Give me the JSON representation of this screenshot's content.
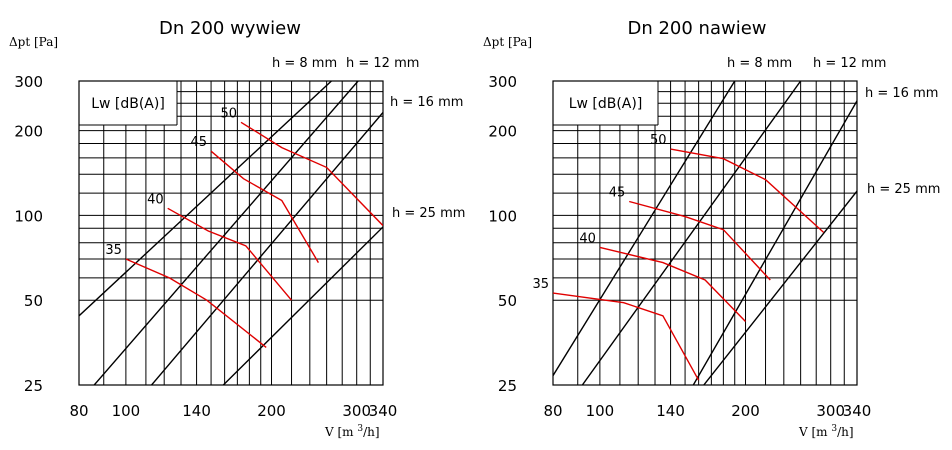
{
  "chart_data": [
    {
      "type": "line",
      "title": "Dn 200 wywiew",
      "ylabel": "Δpt [Pa]",
      "xlabel": "V [m³/h]",
      "xscale": "log",
      "yscale": "log",
      "xlim": [
        80,
        340
      ],
      "ylim": [
        25,
        300
      ],
      "x_ticks": [
        80,
        100,
        140,
        200,
        300,
        340
      ],
      "y_ticks": [
        25,
        50,
        100,
        200,
        300
      ],
      "x_gridlines": [
        90,
        100,
        110,
        120,
        130,
        140,
        150,
        160,
        170,
        180,
        190,
        200,
        220,
        240,
        260,
        280,
        300,
        320
      ],
      "y_gridlines": [
        50,
        60,
        70,
        80,
        90,
        100,
        120,
        140,
        160,
        180,
        200,
        225,
        250,
        275
      ],
      "box_label": "Lw [dB(A)]",
      "h_lines": [
        {
          "name": "h = 8 mm",
          "p0": [
            80,
            44
          ],
          "p1": [
            266,
            300
          ]
        },
        {
          "name": "h = 12 mm",
          "p0": [
            86,
            25
          ],
          "p1": [
            302,
            300
          ]
        },
        {
          "name": "h = 16 mm",
          "p0": [
            113,
            25
          ],
          "p1": [
            340,
            232
          ]
        },
        {
          "name": "h = 25 mm",
          "p0": [
            159,
            25
          ],
          "p1": [
            340,
            91
          ]
        }
      ],
      "level_lines": [
        {
          "name": "35",
          "points": [
            [
              100,
              70
            ],
            [
              123,
              60
            ],
            [
              147,
              50
            ],
            [
              195,
              34
            ]
          ]
        },
        {
          "name": "40",
          "points": [
            [
              122,
              106
            ],
            [
              148,
              88
            ],
            [
              177,
              78
            ],
            [
              220,
              50
            ]
          ]
        },
        {
          "name": "45",
          "points": [
            [
              150,
              169
            ],
            [
              175,
              135
            ],
            [
              210,
              113
            ],
            [
              250,
              68
            ]
          ]
        },
        {
          "name": "50",
          "points": [
            [
              173,
              214
            ],
            [
              210,
              174
            ],
            [
              260,
              148
            ],
            [
              340,
              92
            ]
          ]
        }
      ]
    },
    {
      "type": "line",
      "title": "Dn 200 nawiew",
      "ylabel": "Δpt [Pa]",
      "xlabel": "V [m³/h]",
      "xscale": "log",
      "yscale": "log",
      "xlim": [
        80,
        340
      ],
      "ylim": [
        25,
        300
      ],
      "x_ticks": [
        80,
        100,
        140,
        200,
        300,
        340
      ],
      "y_ticks": [
        25,
        50,
        100,
        200,
        300
      ],
      "x_gridlines": [
        90,
        100,
        110,
        120,
        130,
        140,
        150,
        160,
        170,
        180,
        190,
        200,
        220,
        240,
        260,
        280,
        300,
        320
      ],
      "y_gridlines": [
        50,
        60,
        70,
        80,
        90,
        100,
        120,
        140,
        160,
        180,
        200,
        225,
        250,
        275
      ],
      "box_label": "Lw [dB(A)]",
      "h_lines": [
        {
          "name": "h = 8 mm",
          "p0": [
            80,
            27
          ],
          "p1": [
            190,
            300
          ]
        },
        {
          "name": "h = 12 mm",
          "p0": [
            92,
            25
          ],
          "p1": [
            260,
            300
          ]
        },
        {
          "name": "h = 16 mm",
          "p0": [
            156,
            25
          ],
          "p1": [
            340,
            255
          ]
        },
        {
          "name": "h = 25 mm",
          "p0": [
            164,
            25
          ],
          "p1": [
            340,
            122
          ]
        }
      ],
      "level_lines": [
        {
          "name": "35",
          "points": [
            [
              80,
              53
            ],
            [
              112,
              49
            ],
            [
              135,
              44
            ],
            [
              160,
              26
            ]
          ]
        },
        {
          "name": "40",
          "points": [
            [
              100,
              77
            ],
            [
              135,
              68
            ],
            [
              165,
              59
            ],
            [
              200,
              42
            ]
          ]
        },
        {
          "name": "45",
          "points": [
            [
              115,
              112
            ],
            [
              150,
              99
            ],
            [
              180,
              89
            ],
            [
              225,
              59
            ]
          ]
        },
        {
          "name": "50",
          "points": [
            [
              140,
              172
            ],
            [
              180,
              159
            ],
            [
              220,
              134
            ],
            [
              290,
              87
            ]
          ]
        }
      ]
    }
  ]
}
